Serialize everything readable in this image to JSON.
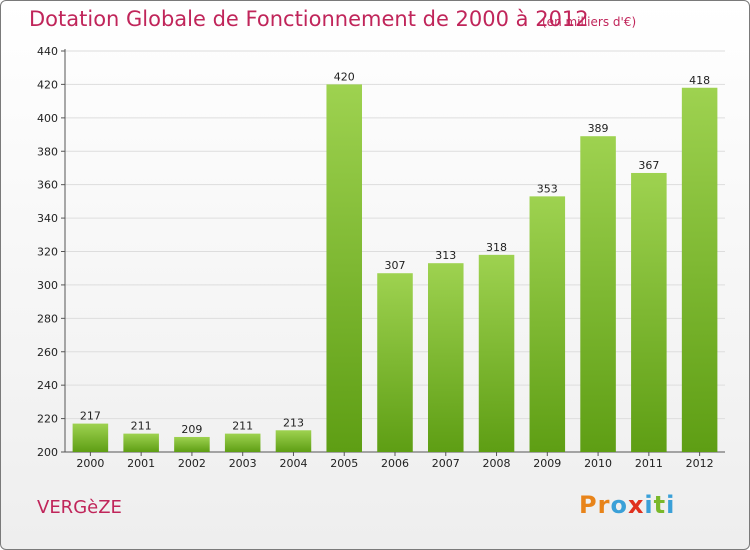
{
  "header": {
    "title": "Dotation Globale de Fonctionnement de 2000 à 2012",
    "subtitle": "(en milliers d'€)"
  },
  "footer": {
    "commune": "VERGèZE",
    "logo_text": "Proxiti",
    "logo_colors": [
      "#e8841a",
      "#e8841a",
      "#3aa0d8",
      "#e0301e",
      "#3aa0d8",
      "#7ab82a",
      "#3aa0d8"
    ]
  },
  "colors": {
    "text_accent": "#c0255a",
    "bar_light": "#9ed250",
    "bar_dark": "#5e9e14",
    "grid": "#dddddd"
  },
  "chart_data": {
    "type": "bar",
    "title": "Dotation Globale de Fonctionnement de 2000 à 2012",
    "subtitle": "(en milliers d'€)",
    "categories": [
      "2000",
      "2001",
      "2002",
      "2003",
      "2004",
      "2005",
      "2006",
      "2007",
      "2008",
      "2009",
      "2010",
      "2011",
      "2012"
    ],
    "values": [
      217,
      211,
      209,
      211,
      213,
      420,
      307,
      313,
      318,
      353,
      389,
      367,
      418
    ],
    "ylim": [
      200,
      440
    ],
    "yticks": [
      200,
      220,
      240,
      260,
      280,
      300,
      320,
      340,
      360,
      380,
      400,
      420,
      440
    ],
    "grid": true,
    "xlabel": "",
    "ylabel": ""
  }
}
